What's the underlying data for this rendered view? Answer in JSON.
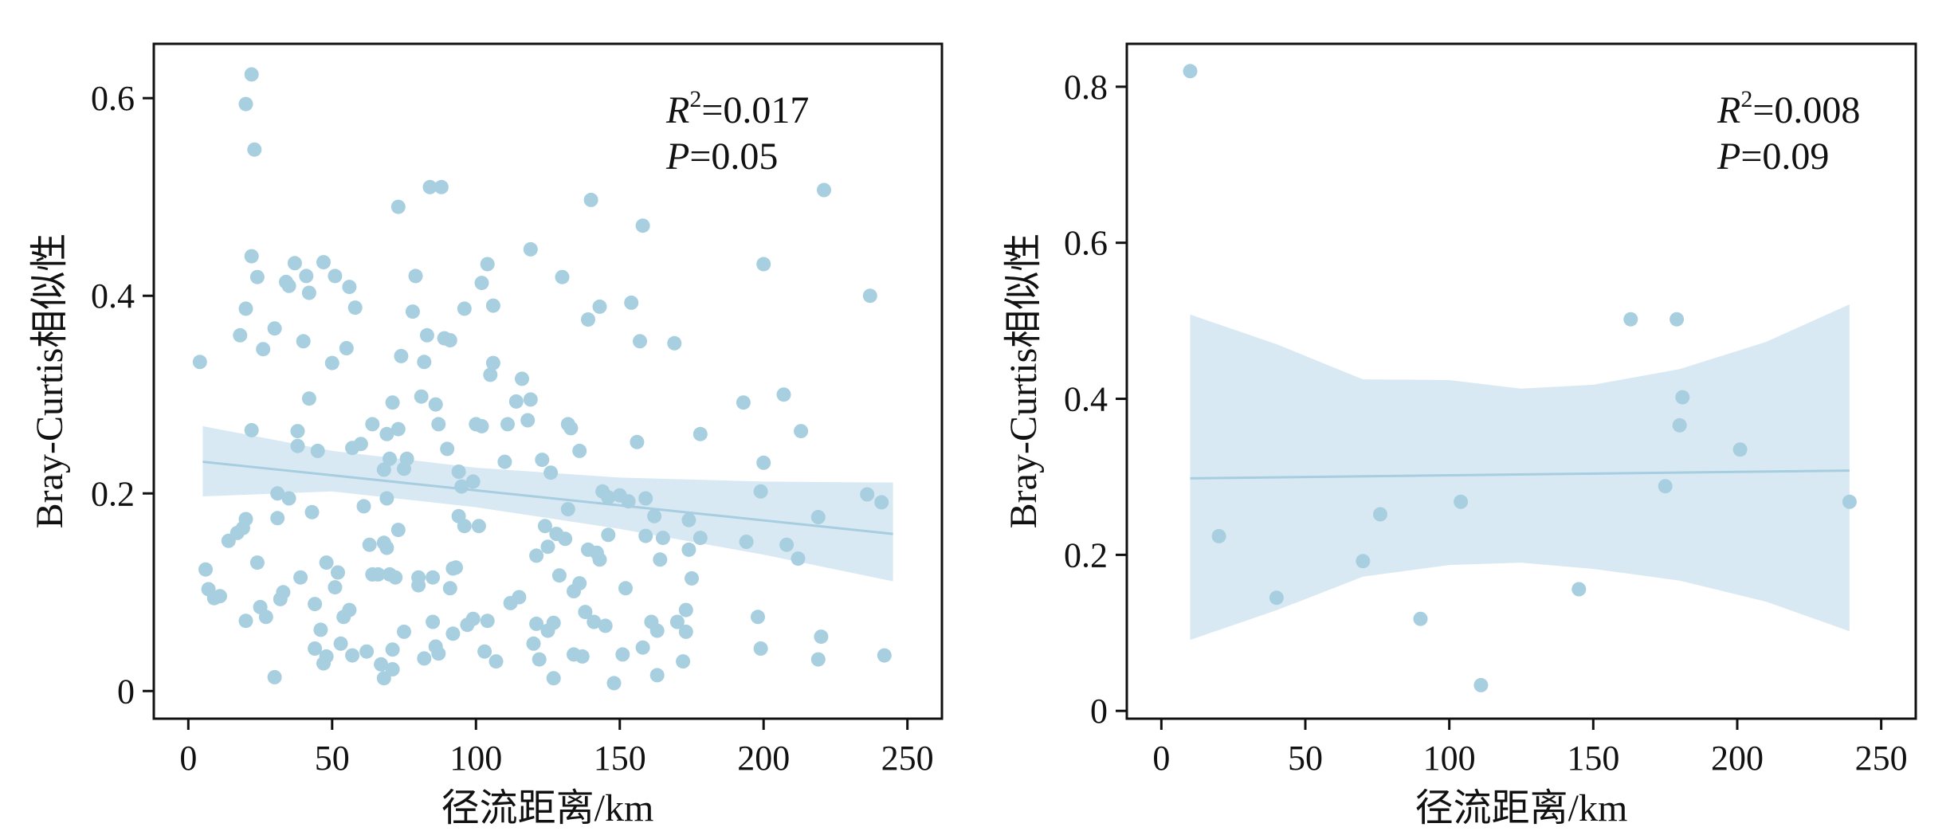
{
  "colors": {
    "point": "#a7cfe0",
    "band": "#d9e9f3",
    "line": "#a6cde0",
    "axis": "#111111"
  },
  "chart_data": [
    {
      "type": "scatter",
      "xlabel": "径流距离/km",
      "ylabel": "Bray-Curtis相似性",
      "xlim": [
        -12,
        262
      ],
      "ylim": [
        -0.028,
        0.655
      ],
      "xticks": [
        0,
        50,
        100,
        150,
        200,
        250
      ],
      "yticks": [
        0,
        0.2,
        0.4,
        0.6
      ],
      "xtick_labels": [
        "0",
        "50",
        "100",
        "150",
        "200",
        "250"
      ],
      "ytick_labels": [
        "0",
        "0.2",
        "0.4",
        "0.6"
      ],
      "annotation": {
        "r2_var": "R",
        "r2_sup": "2",
        "r2_value": "=0.017",
        "p_var": "P",
        "p_value": "=0.05"
      },
      "fit": {
        "x": [
          5,
          245
        ],
        "y": [
          0.232,
          0.159
        ]
      },
      "ci_band": {
        "x": [
          5,
          50,
          100,
          150,
          200,
          245
        ],
        "upper": [
          0.268,
          0.243,
          0.226,
          0.216,
          0.212,
          0.211
        ],
        "lower": [
          0.197,
          0.202,
          0.186,
          0.164,
          0.138,
          0.111
        ]
      },
      "points": [
        [
          4,
          0.333
        ],
        [
          6,
          0.123
        ],
        [
          7,
          0.103
        ],
        [
          9,
          0.094
        ],
        [
          11,
          0.096
        ],
        [
          14,
          0.152
        ],
        [
          17,
          0.16
        ],
        [
          18,
          0.36
        ],
        [
          19,
          0.165
        ],
        [
          20,
          0.071
        ],
        [
          20,
          0.174
        ],
        [
          20,
          0.387
        ],
        [
          20,
          0.594
        ],
        [
          22,
          0.624
        ],
        [
          22,
          0.44
        ],
        [
          22,
          0.264
        ],
        [
          23,
          0.548
        ],
        [
          24,
          0.13
        ],
        [
          24,
          0.419
        ],
        [
          25,
          0.085
        ],
        [
          26,
          0.346
        ],
        [
          27,
          0.075
        ],
        [
          30,
          0.367
        ],
        [
          30,
          0.014
        ],
        [
          31,
          0.2
        ],
        [
          31,
          0.175
        ],
        [
          32,
          0.093
        ],
        [
          33,
          0.1
        ],
        [
          34,
          0.414
        ],
        [
          35,
          0.41
        ],
        [
          35,
          0.195
        ],
        [
          37,
          0.433
        ],
        [
          38,
          0.248
        ],
        [
          38,
          0.263
        ],
        [
          39,
          0.115
        ],
        [
          40,
          0.354
        ],
        [
          41,
          0.42
        ],
        [
          42,
          0.403
        ],
        [
          42,
          0.296
        ],
        [
          43,
          0.181
        ],
        [
          44,
          0.088
        ],
        [
          44,
          0.043
        ],
        [
          45,
          0.243
        ],
        [
          46,
          0.062
        ],
        [
          47,
          0.028
        ],
        [
          47,
          0.434
        ],
        [
          48,
          0.035
        ],
        [
          48,
          0.13
        ],
        [
          50,
          0.332
        ],
        [
          51,
          0.42
        ],
        [
          51,
          0.105
        ],
        [
          52,
          0.12
        ],
        [
          53,
          0.048
        ],
        [
          54,
          0.075
        ],
        [
          55,
          0.347
        ],
        [
          56,
          0.082
        ],
        [
          56,
          0.409
        ],
        [
          57,
          0.036
        ],
        [
          57,
          0.246
        ],
        [
          58,
          0.388
        ],
        [
          60,
          0.25
        ],
        [
          61,
          0.187
        ],
        [
          62,
          0.04
        ],
        [
          63,
          0.148
        ],
        [
          64,
          0.27
        ],
        [
          64,
          0.118
        ],
        [
          66,
          0.118
        ],
        [
          67,
          0.027
        ],
        [
          68,
          0.013
        ],
        [
          68,
          0.224
        ],
        [
          68,
          0.15
        ],
        [
          69,
          0.195
        ],
        [
          69,
          0.26
        ],
        [
          69,
          0.145
        ],
        [
          70,
          0.235
        ],
        [
          70,
          0.118
        ],
        [
          71,
          0.042
        ],
        [
          71,
          0.292
        ],
        [
          71,
          0.022
        ],
        [
          72,
          0.115
        ],
        [
          73,
          0.265
        ],
        [
          73,
          0.49
        ],
        [
          73,
          0.163
        ],
        [
          74,
          0.339
        ],
        [
          75,
          0.225
        ],
        [
          75,
          0.06
        ],
        [
          76,
          0.235
        ],
        [
          78,
          0.384
        ],
        [
          79,
          0.42
        ],
        [
          80,
          0.115
        ],
        [
          80,
          0.107
        ],
        [
          81,
          0.298
        ],
        [
          82,
          0.333
        ],
        [
          82,
          0.033
        ],
        [
          83,
          0.36
        ],
        [
          84,
          0.51
        ],
        [
          85,
          0.07
        ],
        [
          85,
          0.115
        ],
        [
          86,
          0.29
        ],
        [
          86,
          0.045
        ],
        [
          87,
          0.27
        ],
        [
          87,
          0.038
        ],
        [
          88,
          0.51
        ],
        [
          89,
          0.357
        ],
        [
          90,
          0.245
        ],
        [
          91,
          0.104
        ],
        [
          91,
          0.355
        ],
        [
          92,
          0.058
        ],
        [
          92,
          0.124
        ],
        [
          93,
          0.125
        ],
        [
          94,
          0.222
        ],
        [
          94,
          0.177
        ],
        [
          95,
          0.207
        ],
        [
          96,
          0.167
        ],
        [
          96,
          0.387
        ],
        [
          97,
          0.067
        ],
        [
          99,
          0.212
        ],
        [
          99,
          0.073
        ],
        [
          100,
          0.27
        ],
        [
          101,
          0.167
        ],
        [
          102,
          0.268
        ],
        [
          102,
          0.413
        ],
        [
          103,
          0.04
        ],
        [
          104,
          0.071
        ],
        [
          104,
          0.432
        ],
        [
          105,
          0.32
        ],
        [
          106,
          0.39
        ],
        [
          106,
          0.332
        ],
        [
          107,
          0.03
        ],
        [
          110,
          0.232
        ],
        [
          111,
          0.27
        ],
        [
          112,
          0.089
        ],
        [
          114,
          0.293
        ],
        [
          115,
          0.095
        ],
        [
          116,
          0.316
        ],
        [
          118,
          0.274
        ],
        [
          119,
          0.447
        ],
        [
          119,
          0.295
        ],
        [
          120,
          0.048
        ],
        [
          121,
          0.068
        ],
        [
          121,
          0.137
        ],
        [
          122,
          0.032
        ],
        [
          123,
          0.234
        ],
        [
          124,
          0.167
        ],
        [
          125,
          0.146
        ],
        [
          125,
          0.061
        ],
        [
          126,
          0.221
        ],
        [
          127,
          0.069
        ],
        [
          127,
          0.013
        ],
        [
          128,
          0.159
        ],
        [
          129,
          0.117
        ],
        [
          130,
          0.419
        ],
        [
          131,
          0.154
        ],
        [
          132,
          0.184
        ],
        [
          132,
          0.27
        ],
        [
          133,
          0.266
        ],
        [
          134,
          0.037
        ],
        [
          134,
          0.101
        ],
        [
          136,
          0.109
        ],
        [
          136,
          0.243
        ],
        [
          137,
          0.035
        ],
        [
          138,
          0.08
        ],
        [
          139,
          0.376
        ],
        [
          139,
          0.143
        ],
        [
          140,
          0.497
        ],
        [
          141,
          0.07
        ],
        [
          142,
          0.14
        ],
        [
          143,
          0.133
        ],
        [
          143,
          0.389
        ],
        [
          144,
          0.202
        ],
        [
          145,
          0.066
        ],
        [
          146,
          0.158
        ],
        [
          146,
          0.196
        ],
        [
          148,
          0.008
        ],
        [
          150,
          0.198
        ],
        [
          151,
          0.037
        ],
        [
          152,
          0.104
        ],
        [
          153,
          0.192
        ],
        [
          154,
          0.393
        ],
        [
          156,
          0.252
        ],
        [
          157,
          0.354
        ],
        [
          158,
          0.471
        ],
        [
          158,
          0.044
        ],
        [
          159,
          0.157
        ],
        [
          159,
          0.195
        ],
        [
          161,
          0.07
        ],
        [
          162,
          0.177
        ],
        [
          163,
          0.016
        ],
        [
          163,
          0.061
        ],
        [
          164,
          0.133
        ],
        [
          165,
          0.155
        ],
        [
          169,
          0.352
        ],
        [
          170,
          0.07
        ],
        [
          172,
          0.03
        ],
        [
          173,
          0.06
        ],
        [
          173,
          0.082
        ],
        [
          174,
          0.143
        ],
        [
          174,
          0.173
        ],
        [
          175,
          0.114
        ],
        [
          178,
          0.26
        ],
        [
          178,
          0.155
        ],
        [
          193,
          0.292
        ],
        [
          194,
          0.151
        ],
        [
          198,
          0.075
        ],
        [
          199,
          0.043
        ],
        [
          199,
          0.202
        ],
        [
          200,
          0.231
        ],
        [
          200,
          0.432
        ],
        [
          207,
          0.3
        ],
        [
          208,
          0.148
        ],
        [
          212,
          0.134
        ],
        [
          213,
          0.263
        ],
        [
          219,
          0.176
        ],
        [
          219,
          0.032
        ],
        [
          220,
          0.055
        ],
        [
          221,
          0.507
        ],
        [
          236,
          0.199
        ],
        [
          237,
          0.4
        ],
        [
          241,
          0.191
        ],
        [
          242,
          0.036
        ]
      ]
    },
    {
      "type": "scatter",
      "xlabel": "径流距离/km",
      "ylabel": "Bray-Curtis相似性",
      "xlim": [
        -12,
        262
      ],
      "ylim": [
        -0.01,
        0.855
      ],
      "xticks": [
        0,
        50,
        100,
        150,
        200,
        250
      ],
      "yticks": [
        0,
        0.2,
        0.4,
        0.6,
        0.8
      ],
      "xtick_labels": [
        "0",
        "50",
        "100",
        "150",
        "200",
        "250"
      ],
      "ytick_labels": [
        "0",
        "0.2",
        "0.4",
        "0.6",
        "0.8"
      ],
      "annotation": {
        "r2_var": "R",
        "r2_sup": "2",
        "r2_value": "=0.008",
        "p_var": "P",
        "p_value": "=0.09"
      },
      "fit": {
        "x": [
          10,
          239
        ],
        "y": [
          0.298,
          0.308
        ]
      },
      "ci_band": {
        "x": [
          10,
          40,
          70,
          100,
          125,
          150,
          180,
          210,
          239
        ],
        "upper": [
          0.508,
          0.47,
          0.425,
          0.424,
          0.413,
          0.418,
          0.438,
          0.473,
          0.521
        ],
        "lower": [
          0.091,
          0.129,
          0.172,
          0.187,
          0.19,
          0.182,
          0.167,
          0.14,
          0.102
        ]
      },
      "points": [
        [
          10,
          0.82
        ],
        [
          20,
          0.224
        ],
        [
          40,
          0.145
        ],
        [
          70,
          0.192
        ],
        [
          76,
          0.252
        ],
        [
          90,
          0.118
        ],
        [
          104,
          0.268
        ],
        [
          111,
          0.033
        ],
        [
          145,
          0.156
        ],
        [
          163,
          0.502
        ],
        [
          175,
          0.288
        ],
        [
          179,
          0.502
        ],
        [
          180,
          0.366
        ],
        [
          181,
          0.402
        ],
        [
          201,
          0.335
        ],
        [
          239,
          0.268
        ]
      ]
    }
  ]
}
